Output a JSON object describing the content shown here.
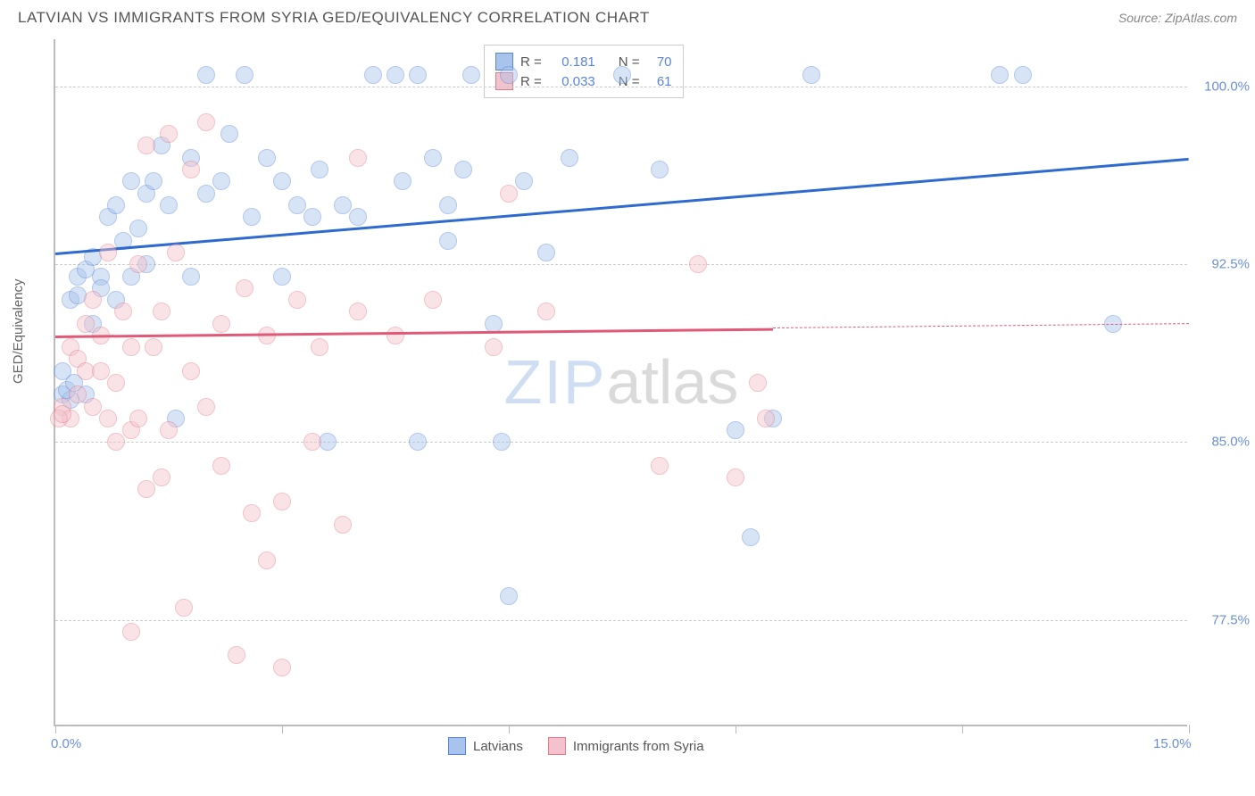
{
  "title": "LATVIAN VS IMMIGRANTS FROM SYRIA GED/EQUIVALENCY CORRELATION CHART",
  "source": "Source: ZipAtlas.com",
  "ylabel": "GED/Equivalency",
  "watermark_a": "ZIP",
  "watermark_b": "atlas",
  "chart": {
    "xlim": [
      0.0,
      15.0
    ],
    "ylim": [
      73.0,
      102.0
    ],
    "ytick_values": [
      77.5,
      85.0,
      92.5,
      100.0
    ],
    "ytick_labels": [
      "77.5%",
      "85.0%",
      "92.5%",
      "100.0%"
    ],
    "xtick_values": [
      0.0,
      3.0,
      6.0,
      9.0,
      12.0,
      15.0
    ],
    "x_axis_start_label": "0.0%",
    "x_axis_end_label": "15.0%",
    "grid_color": "#cccccc",
    "axis_color": "#bbbbbb",
    "tick_label_color": "#6a8fd8",
    "marker_radius": 10,
    "marker_opacity": 0.45,
    "series": [
      {
        "key": "latvians",
        "label": "Latvians",
        "color_fill": "#a8c4ec",
        "color_stroke": "#5a85d6",
        "r": "0.181",
        "n": "70",
        "trend": {
          "x1": 0.0,
          "y1": 93.0,
          "x2": 15.0,
          "y2": 97.0,
          "line_color": "#2f6ad0",
          "dash_from_x": null
        },
        "points": [
          [
            0.2,
            91.0
          ],
          [
            0.3,
            92.0
          ],
          [
            0.3,
            91.2
          ],
          [
            0.4,
            92.3
          ],
          [
            0.4,
            87.0
          ],
          [
            0.5,
            92.8
          ],
          [
            0.5,
            90.0
          ],
          [
            0.6,
            92.0
          ],
          [
            0.6,
            91.5
          ],
          [
            0.7,
            94.5
          ],
          [
            0.8,
            95.0
          ],
          [
            0.8,
            91.0
          ],
          [
            0.9,
            93.5
          ],
          [
            1.0,
            92.0
          ],
          [
            1.0,
            96.0
          ],
          [
            1.1,
            94.0
          ],
          [
            1.2,
            95.5
          ],
          [
            1.2,
            92.5
          ],
          [
            1.3,
            96.0
          ],
          [
            1.4,
            97.5
          ],
          [
            1.5,
            95.0
          ],
          [
            1.6,
            86.0
          ],
          [
            1.8,
            97.0
          ],
          [
            1.8,
            92.0
          ],
          [
            2.0,
            95.5
          ],
          [
            2.0,
            100.5
          ],
          [
            2.2,
            96.0
          ],
          [
            2.3,
            98.0
          ],
          [
            2.5,
            100.5
          ],
          [
            2.6,
            94.5
          ],
          [
            2.8,
            97.0
          ],
          [
            3.0,
            96.0
          ],
          [
            3.0,
            92.0
          ],
          [
            3.2,
            95.0
          ],
          [
            3.4,
            94.5
          ],
          [
            3.5,
            96.5
          ],
          [
            3.6,
            85.0
          ],
          [
            3.8,
            95.0
          ],
          [
            4.0,
            94.5
          ],
          [
            4.2,
            100.5
          ],
          [
            4.5,
            100.5
          ],
          [
            4.6,
            96.0
          ],
          [
            4.8,
            85.0
          ],
          [
            4.8,
            100.5
          ],
          [
            5.0,
            97.0
          ],
          [
            5.2,
            93.5
          ],
          [
            5.2,
            95.0
          ],
          [
            5.4,
            96.5
          ],
          [
            5.5,
            100.5
          ],
          [
            5.8,
            90.0
          ],
          [
            5.9,
            85.0
          ],
          [
            6.0,
            78.5
          ],
          [
            6.0,
            100.5
          ],
          [
            6.2,
            96.0
          ],
          [
            6.5,
            93.0
          ],
          [
            6.8,
            97.0
          ],
          [
            7.5,
            100.5
          ],
          [
            8.0,
            96.5
          ],
          [
            9.0,
            85.5
          ],
          [
            9.2,
            81.0
          ],
          [
            9.5,
            86.0
          ],
          [
            10.0,
            100.5
          ],
          [
            12.5,
            100.5
          ],
          [
            12.8,
            100.5
          ],
          [
            14.0,
            90.0
          ],
          [
            0.1,
            87.0
          ],
          [
            0.2,
            86.8
          ],
          [
            0.15,
            87.2
          ],
          [
            0.25,
            87.5
          ],
          [
            0.1,
            88.0
          ]
        ]
      },
      {
        "key": "syria",
        "label": "Immigrants from Syria",
        "color_fill": "#f4c2cc",
        "color_stroke": "#e07a8b",
        "r": "0.033",
        "n": "61",
        "trend": {
          "x1": 0.0,
          "y1": 89.5,
          "x2": 15.0,
          "y2": 90.0,
          "line_color": "#e05a78",
          "dash_from_x": 9.5
        },
        "points": [
          [
            0.1,
            86.5
          ],
          [
            0.2,
            86.0
          ],
          [
            0.2,
            89.0
          ],
          [
            0.3,
            88.5
          ],
          [
            0.3,
            87.0
          ],
          [
            0.4,
            90.0
          ],
          [
            0.4,
            88.0
          ],
          [
            0.5,
            86.5
          ],
          [
            0.5,
            91.0
          ],
          [
            0.6,
            88.0
          ],
          [
            0.6,
            89.5
          ],
          [
            0.7,
            86.0
          ],
          [
            0.7,
            93.0
          ],
          [
            0.8,
            85.0
          ],
          [
            0.8,
            87.5
          ],
          [
            0.9,
            90.5
          ],
          [
            1.0,
            85.5
          ],
          [
            1.0,
            89.0
          ],
          [
            1.1,
            92.5
          ],
          [
            1.1,
            86.0
          ],
          [
            1.2,
            83.0
          ],
          [
            1.2,
            97.5
          ],
          [
            1.3,
            89.0
          ],
          [
            1.4,
            90.5
          ],
          [
            1.5,
            98.0
          ],
          [
            1.5,
            85.5
          ],
          [
            1.6,
            93.0
          ],
          [
            1.7,
            78.0
          ],
          [
            1.8,
            96.5
          ],
          [
            1.8,
            88.0
          ],
          [
            2.0,
            86.5
          ],
          [
            2.0,
            98.5
          ],
          [
            2.2,
            90.0
          ],
          [
            2.2,
            84.0
          ],
          [
            2.4,
            76.0
          ],
          [
            2.5,
            91.5
          ],
          [
            2.6,
            82.0
          ],
          [
            2.8,
            80.0
          ],
          [
            2.8,
            89.5
          ],
          [
            3.0,
            82.5
          ],
          [
            3.0,
            75.5
          ],
          [
            3.2,
            91.0
          ],
          [
            3.4,
            85.0
          ],
          [
            3.5,
            89.0
          ],
          [
            3.8,
            81.5
          ],
          [
            4.0,
            90.5
          ],
          [
            4.0,
            97.0
          ],
          [
            4.5,
            89.5
          ],
          [
            5.0,
            91.0
          ],
          [
            5.8,
            89.0
          ],
          [
            6.0,
            95.5
          ],
          [
            6.5,
            90.5
          ],
          [
            8.0,
            84.0
          ],
          [
            8.5,
            92.5
          ],
          [
            9.0,
            83.5
          ],
          [
            9.3,
            87.5
          ],
          [
            9.4,
            86.0
          ],
          [
            1.0,
            77.0
          ],
          [
            1.4,
            83.5
          ],
          [
            0.05,
            86.0
          ],
          [
            0.1,
            86.2
          ]
        ]
      }
    ]
  },
  "legend_top": {
    "r_label": "R =",
    "n_label": "N ="
  }
}
